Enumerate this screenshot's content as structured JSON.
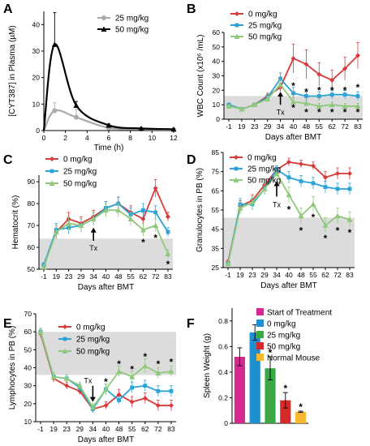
{
  "chart_data": [
    {
      "panel": "A",
      "type": "line",
      "xlabel": "Time (h)",
      "ylabel": "[CYT387] in Plasma (µM)",
      "xlim": [
        0,
        12
      ],
      "ylim": [
        0,
        45
      ],
      "xticks": [
        0,
        2,
        4,
        6,
        8,
        10,
        12
      ],
      "yticks": [
        0,
        10,
        20,
        30,
        40
      ],
      "legend_position": "top-right",
      "series": [
        {
          "name": "25 mg/kg",
          "color": "#aaaaaa",
          "marker": "circle",
          "x": [
            0,
            1,
            3,
            6,
            9,
            12
          ],
          "y": [
            0,
            7.5,
            5,
            1,
            0.5,
            0.3
          ],
          "err": [
            0,
            3,
            3,
            0.5,
            0.3,
            0.2
          ]
        },
        {
          "name": "50 mg/kg",
          "color": "#000000",
          "marker": "triangle",
          "x": [
            0,
            1,
            3,
            6,
            9,
            12
          ],
          "y": [
            0,
            32.5,
            9.5,
            2,
            0.8,
            0.5
          ],
          "err": [
            0,
            12,
            1.5,
            0.5,
            0.3,
            0.2
          ]
        }
      ]
    },
    {
      "panel": "B",
      "type": "line",
      "xlabel": "Days after BMT",
      "ylabel": "WBC Count (x10⁶ /mL)",
      "categories": [
        "-1",
        "19",
        "23",
        "29",
        "34",
        "40",
        "48",
        "55",
        "62",
        "72",
        "83"
      ],
      "ylim": [
        0,
        60
      ],
      "yticks": [
        0,
        10,
        20,
        30,
        40,
        50,
        60
      ],
      "shade": [
        0,
        16
      ],
      "tx_at": "34",
      "tx_label": "Tx",
      "legend_position": "top-left",
      "series": [
        {
          "name": "0 mg/kg",
          "color": "#d73b3b",
          "values": [
            10,
            7,
            10,
            16,
            22,
            42,
            38,
            31,
            27,
            35,
            44
          ],
          "err": [
            1,
            1,
            1,
            2,
            3,
            10,
            10,
            8,
            7,
            8,
            9
          ]
        },
        {
          "name": "25 mg/kg",
          "color": "#2aa3d6",
          "values": [
            10,
            7,
            10,
            15,
            28,
            18,
            16,
            16,
            17,
            17,
            16
          ],
          "err": [
            1,
            1,
            1,
            2,
            4,
            4,
            3,
            3,
            3,
            3,
            3
          ]
        },
        {
          "name": "50 mg/kg",
          "color": "#8ec97c",
          "values": [
            9,
            7,
            10,
            14,
            24,
            12,
            11,
            9,
            10,
            9,
            9
          ],
          "err": [
            1,
            1,
            1,
            2,
            3,
            3,
            2,
            2,
            2,
            2,
            2
          ]
        }
      ],
      "stars": [
        {
          "x": "40",
          "y": 24
        },
        {
          "x": "40",
          "y": 9
        },
        {
          "x": "48",
          "y": 20
        },
        {
          "x": "48",
          "y": 6
        },
        {
          "x": "55",
          "y": 21
        },
        {
          "x": "55",
          "y": 6
        },
        {
          "x": "62",
          "y": 21
        },
        {
          "x": "62",
          "y": 6
        },
        {
          "x": "72",
          "y": 21
        },
        {
          "x": "72",
          "y": 6
        },
        {
          "x": "83",
          "y": 23
        },
        {
          "x": "83",
          "y": 6
        }
      ]
    },
    {
      "panel": "C",
      "type": "line",
      "xlabel": "Days after BMT",
      "ylabel": "Hematocrit (%)",
      "categories": [
        "-1",
        "19",
        "23",
        "29",
        "34",
        "40",
        "48",
        "55",
        "62",
        "72",
        "83"
      ],
      "ylim": [
        50,
        93
      ],
      "yticks": [
        50,
        60,
        70,
        80,
        90
      ],
      "shade": [
        50,
        64
      ],
      "tx_at": "34",
      "tx_label": "Tx",
      "legend_position": "top-left",
      "series": [
        {
          "name": "0 mg/kg",
          "color": "#d73b3b",
          "values": [
            52,
            67,
            73,
            71,
            74,
            78,
            80,
            76,
            73,
            87,
            74
          ],
          "err": [
            1,
            3,
            3,
            3,
            3,
            3,
            3,
            3,
            3,
            4,
            2
          ]
        },
        {
          "name": "25 mg/kg",
          "color": "#2aa3d6",
          "values": [
            52,
            68,
            69,
            70,
            73,
            78,
            80,
            75,
            77,
            76,
            67
          ],
          "err": [
            1,
            3,
            3,
            3,
            3,
            3,
            3,
            3,
            3,
            3,
            2
          ]
        },
        {
          "name": "50 mg/kg",
          "color": "#8ec97c",
          "values": [
            51,
            67,
            71,
            70,
            73,
            77,
            77,
            73,
            68,
            70,
            57
          ],
          "err": [
            1,
            3,
            3,
            3,
            3,
            3,
            3,
            3,
            3,
            3,
            2
          ]
        }
      ],
      "stars": [
        {
          "x": "62",
          "y": 63
        },
        {
          "x": "72",
          "y": 65
        },
        {
          "x": "83",
          "y": 53
        }
      ]
    },
    {
      "panel": "D",
      "type": "line",
      "xlabel": "Days after BMT",
      "ylabel": "Granulocytes in PB (%)",
      "categories": [
        "-1",
        "19",
        "23",
        "29",
        "34",
        "40",
        "48",
        "55",
        "62",
        "72",
        "83"
      ],
      "ylim": [
        25,
        85
      ],
      "yticks": [
        25,
        35,
        45,
        55,
        65,
        75,
        85
      ],
      "shade": [
        25,
        51
      ],
      "tx_at": "34",
      "tx_label": "Tx",
      "legend_position": "top-left",
      "series": [
        {
          "name": "0 mg/kg",
          "color": "#d73b3b",
          "values": [
            28,
            57,
            60,
            68,
            76,
            80,
            79,
            78,
            72,
            74,
            74
          ],
          "err": [
            1,
            3,
            3,
            3,
            2,
            2,
            2,
            2,
            3,
            3,
            3
          ]
        },
        {
          "name": "25 mg/kg",
          "color": "#2aa3d6",
          "values": [
            27,
            58,
            58,
            66,
            76,
            72,
            70,
            69,
            67,
            66,
            66
          ],
          "err": [
            1,
            3,
            3,
            3,
            2,
            3,
            3,
            3,
            3,
            3,
            3
          ]
        },
        {
          "name": "50 mg/kg",
          "color": "#8ec97c",
          "values": [
            27,
            56,
            59,
            66,
            74,
            63,
            52,
            58,
            47,
            52,
            50
          ],
          "err": [
            1,
            3,
            3,
            3,
            2,
            4,
            4,
            4,
            4,
            4,
            4
          ]
        }
      ],
      "stars": [
        {
          "x": "40",
          "y": 56
        },
        {
          "x": "48",
          "y": 45
        },
        {
          "x": "55",
          "y": 52
        },
        {
          "x": "62",
          "y": 41
        },
        {
          "x": "72",
          "y": 45
        },
        {
          "x": "83",
          "y": 44
        }
      ]
    },
    {
      "panel": "E",
      "type": "line",
      "xlabel": "Days after BMT",
      "ylabel": "Lymphocytes in PB (%)",
      "categories": [
        "-1",
        "19",
        "23",
        "29",
        "34",
        "40",
        "48",
        "55",
        "62",
        "72",
        "83"
      ],
      "ylim": [
        10,
        70
      ],
      "yticks": [
        10,
        20,
        30,
        40,
        50,
        60,
        70
      ],
      "shade": [
        36,
        60
      ],
      "tx_at": "34",
      "tx_label": "Tx",
      "legend_position": "top-right",
      "series": [
        {
          "name": "0 mg/kg",
          "color": "#d73b3b",
          "values": [
            59,
            34,
            30,
            27,
            17,
            19,
            25,
            21,
            23,
            19,
            19
          ],
          "err": [
            2,
            2,
            2,
            2,
            2,
            2,
            3,
            3,
            3,
            3,
            3
          ]
        },
        {
          "name": "25 mg/kg",
          "color": "#2aa3d6",
          "values": [
            60,
            35,
            34,
            29,
            17,
            28,
            22,
            29,
            30,
            27,
            27
          ],
          "err": [
            2,
            2,
            2,
            2,
            2,
            3,
            2,
            3,
            3,
            3,
            3
          ]
        },
        {
          "name": "50 mg/kg",
          "color": "#8ec97c",
          "values": [
            60,
            35,
            34,
            30,
            18,
            28,
            38,
            35,
            41,
            37,
            38
          ],
          "err": [
            2,
            2,
            2,
            2,
            2,
            3,
            3,
            3,
            4,
            3,
            3
          ]
        }
      ],
      "stars": [
        {
          "x": "40",
          "y": 33
        },
        {
          "x": "48",
          "y": 43
        },
        {
          "x": "55",
          "y": 40
        },
        {
          "x": "62",
          "y": 47
        },
        {
          "x": "72",
          "y": 43
        },
        {
          "x": "83",
          "y": 44
        }
      ]
    },
    {
      "panel": "F",
      "type": "bar",
      "ylabel": "Spleen Weight (g)",
      "ylim": [
        0,
        0.9
      ],
      "yticks": [
        0,
        0.2,
        0.4,
        0.6,
        0.8
      ],
      "legend_position": "top-right",
      "categories": [
        "Start of Treatment",
        "0 mg/kg",
        "25 mg/kg",
        "50 mg/kg",
        "Normal Mouse"
      ],
      "values": [
        0.52,
        0.71,
        0.43,
        0.18,
        0.09
      ],
      "err": [
        0.07,
        0.06,
        0.09,
        0.06,
        0.005
      ],
      "colors": [
        "#d42a8f",
        "#1f8fcf",
        "#3aa845",
        "#d42a2a",
        "#f5b82e"
      ],
      "starred": [
        false,
        false,
        true,
        true,
        true
      ]
    }
  ]
}
